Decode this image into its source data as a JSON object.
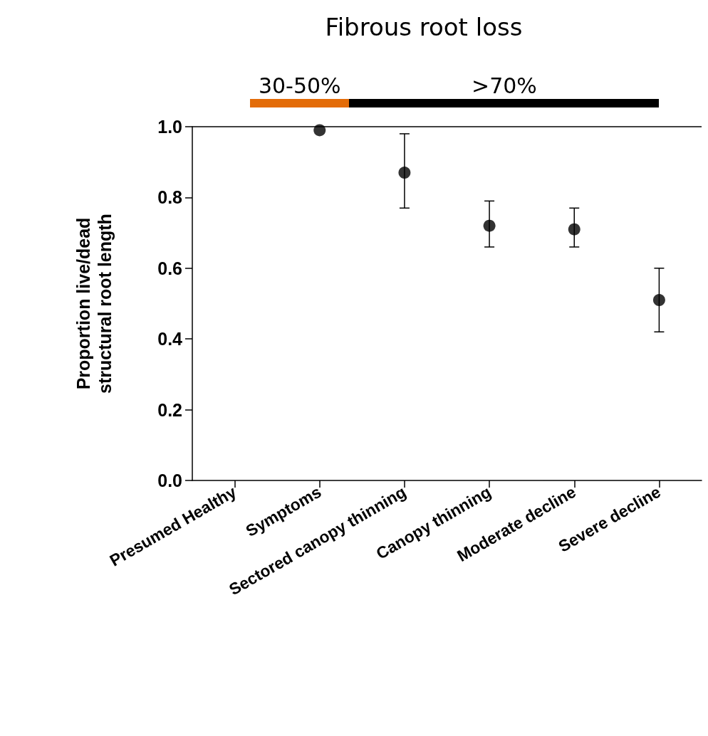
{
  "chart_data": {
    "type": "scatter",
    "title": "Fibrous root loss",
    "ylabel": "Proportion live/dead\nstructural root length",
    "categories": [
      "Presumed Healthy",
      "Symptoms",
      "Sectored canopy thinning",
      "Canopy thinning",
      "Moderate decline",
      "Severe decline"
    ],
    "values": [
      null,
      0.99,
      0.87,
      0.72,
      0.71,
      0.51
    ],
    "errors": [
      null,
      null,
      [
        0.77,
        0.98
      ],
      [
        0.66,
        0.79
      ],
      [
        0.66,
        0.77
      ],
      [
        0.42,
        0.6
      ]
    ],
    "color": "#000000",
    "marker": "circle",
    "ylim": [
      0,
      1
    ],
    "yticks": [
      {
        "value": 0,
        "label": "0.0"
      },
      {
        "value": 0.2,
        "label": "0.2"
      },
      {
        "value": 0.4,
        "label": "0.4"
      },
      {
        "value": 0.6,
        "label": "0.6"
      },
      {
        "value": 0.8,
        "label": "0.8"
      },
      {
        "value": 1,
        "label": "1.0"
      }
    ],
    "ref_lines": [
      {
        "axis": "y",
        "value": 1,
        "label": null,
        "color": "#000000"
      }
    ],
    "annotations": [
      "30-50%",
      ">70%"
    ],
    "grid": false
  }
}
